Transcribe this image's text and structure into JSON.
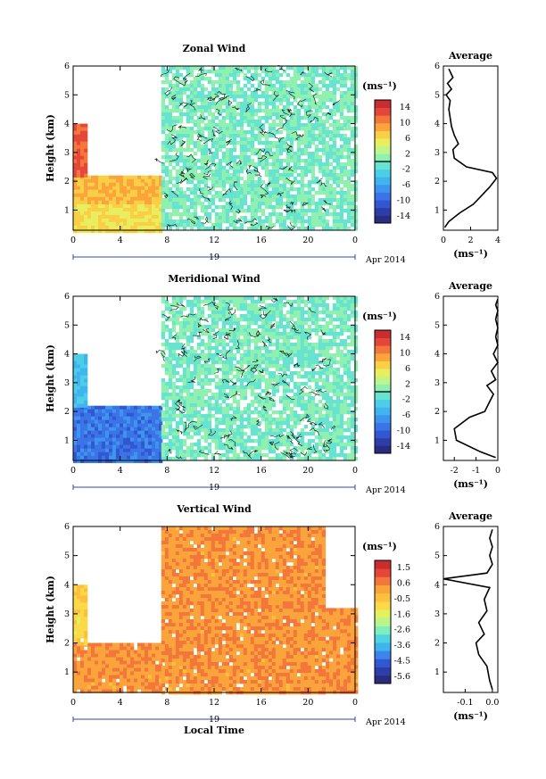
{
  "panels": [
    {
      "title": "Zonal Wind",
      "cb_unit": "(ms⁻¹)",
      "cb_ticks": [
        "14",
        "10",
        "6",
        "2",
        "-2",
        "-6",
        "-10",
        "-14"
      ],
      "cb_kind": "horiz",
      "avg_title": "Average",
      "avg_unit": "(ms⁻¹)",
      "avg_xticks": [
        "0",
        "2",
        "4"
      ]
    },
    {
      "title": "Meridional Wind",
      "cb_unit": "(ms⁻¹)",
      "cb_ticks": [
        "14",
        "10",
        "6",
        "2",
        "-2",
        "-6",
        "-10",
        "-14"
      ],
      "cb_kind": "merid",
      "avg_title": "Average",
      "avg_unit": "(ms⁻¹)",
      "avg_xticks": [
        "-2",
        "-1",
        "0"
      ]
    },
    {
      "title": "Vertical Wind",
      "cb_unit": "(ms⁻¹)",
      "cb_ticks": [
        "1.5",
        "0.6",
        "-0.5",
        "-1.6",
        "-2.6",
        "-3.6",
        "-4.5",
        "-5.6"
      ],
      "cb_kind": "vert",
      "avg_title": "Average",
      "avg_unit": "(ms⁻¹)",
      "avg_xticks": [
        "-0.1",
        "0.0"
      ]
    }
  ],
  "shared": {
    "ylabel": "Height (km)",
    "yticks": [
      "1",
      "2",
      "3",
      "4",
      "5",
      "6"
    ],
    "xticks": [
      "0",
      "4",
      "8",
      "12",
      "16",
      "20",
      "0"
    ],
    "day": "19",
    "month": "Apr 2014",
    "xlabel": "Local Time"
  },
  "chart_data": [
    {
      "type": "heatmap",
      "title": "Zonal Wind",
      "xlabel": "Local Time",
      "ylabel": "Height (km)",
      "xlim": [
        0,
        24
      ],
      "ylim": [
        0.3,
        6
      ],
      "colorbar": {
        "label": "(ms⁻¹)",
        "range": [
          -16,
          16
        ],
        "ticks": [
          14,
          10,
          6,
          2,
          -2,
          -6,
          -10,
          -14
        ]
      },
      "regions": [
        {
          "x": [
            0,
            7.5
          ],
          "y": [
            0.3,
            1.2
          ],
          "value": 6
        },
        {
          "x": [
            0,
            7.5
          ],
          "y": [
            1.2,
            2.2
          ],
          "value": 8
        },
        {
          "x": [
            0,
            1.2
          ],
          "y": [
            2.2,
            4.0
          ],
          "value": 12
        },
        {
          "x": [
            7.5,
            24
          ],
          "y": [
            0.3,
            6
          ],
          "value": 0
        }
      ]
    },
    {
      "type": "line",
      "title": "Average",
      "xlabel": "(ms⁻¹)",
      "ylabel": "Height (km)",
      "xlim": [
        0,
        4
      ],
      "ylim": [
        0.3,
        6
      ],
      "series": [
        {
          "x": [
            0.1,
            0.4,
            1.2,
            2.2,
            2.8,
            3.4,
            3.9,
            3.6,
            1.7,
            0.8,
            0.7,
            1.1,
            0.8,
            0.6,
            0.5,
            0.4,
            0.5,
            0.2,
            0.6,
            0.3,
            0.7,
            0.4
          ],
          "y": [
            0.4,
            0.6,
            0.9,
            1.2,
            1.5,
            1.8,
            2.1,
            2.3,
            2.5,
            2.8,
            3.1,
            3.3,
            3.6,
            3.9,
            4.2,
            4.5,
            4.8,
            5.0,
            5.2,
            5.4,
            5.6,
            5.9
          ]
        }
      ]
    },
    {
      "type": "heatmap",
      "title": "Meridional Wind",
      "xlabel": "Local Time",
      "ylabel": "Height (km)",
      "xlim": [
        0,
        24
      ],
      "ylim": [
        0.3,
        6
      ],
      "colorbar": {
        "label": "(ms⁻¹)",
        "range": [
          -16,
          16
        ],
        "ticks": [
          14,
          10,
          6,
          2,
          -2,
          -6,
          -10,
          -14
        ]
      },
      "regions": [
        {
          "x": [
            0,
            7.5
          ],
          "y": [
            0.3,
            2.2
          ],
          "value": -9
        },
        {
          "x": [
            0,
            1.0
          ],
          "y": [
            2.2,
            4.0
          ],
          "value": -4
        },
        {
          "x": [
            7.5,
            24
          ],
          "y": [
            0.3,
            6
          ],
          "value": 0
        }
      ]
    },
    {
      "type": "line",
      "title": "Average",
      "xlabel": "(ms⁻¹)",
      "ylabel": "Height (km)",
      "xlim": [
        -2.5,
        0
      ],
      "ylim": [
        0.3,
        6
      ],
      "series": [
        {
          "x": [
            -0.1,
            -0.8,
            -1.9,
            -2.0,
            -1.3,
            -0.6,
            -0.4,
            -0.2,
            -0.5,
            -0.1,
            -0.3,
            0,
            -0.2,
            0,
            -0.1,
            0,
            -0.1,
            0,
            -0.1,
            0
          ],
          "y": [
            0.4,
            0.6,
            1.0,
            1.4,
            1.8,
            2.0,
            2.3,
            2.6,
            2.9,
            3.1,
            3.4,
            3.7,
            4.0,
            4.3,
            4.6,
            4.9,
            5.2,
            5.5,
            5.7,
            5.9
          ]
        }
      ]
    },
    {
      "type": "heatmap",
      "title": "Vertical Wind",
      "xlabel": "Local Time",
      "ylabel": "Height (km)",
      "xlim": [
        0,
        24
      ],
      "ylim": [
        0.3,
        6
      ],
      "colorbar": {
        "label": "(ms⁻¹)",
        "range": [
          -6,
          2
        ],
        "ticks": [
          1.5,
          0.6,
          -0.5,
          -1.6,
          -2.6,
          -3.6,
          -4.5,
          -5.6
        ]
      },
      "regions": [
        {
          "x": [
            0,
            7.5
          ],
          "y": [
            0.3,
            2.0
          ],
          "value": 0.3
        },
        {
          "x": [
            0,
            1.0
          ],
          "y": [
            2.0,
            4.0
          ],
          "value": -0.8
        },
        {
          "x": [
            7.5,
            21.5
          ],
          "y": [
            0.3,
            6
          ],
          "value": 0.3
        },
        {
          "x": [
            21.5,
            24
          ],
          "y": [
            0.3,
            3.2
          ],
          "value": 0.3
        }
      ]
    },
    {
      "type": "line",
      "title": "Average",
      "xlabel": "(ms⁻¹)",
      "ylabel": "Height (km)",
      "xlim": [
        -0.18,
        0.02
      ],
      "ylim": [
        0.3,
        6
      ],
      "series": [
        {
          "x": [
            0,
            -0.01,
            -0.02,
            -0.05,
            -0.06,
            -0.03,
            -0.05,
            -0.02,
            -0.03,
            -0.01,
            -0.18,
            -0.02,
            0,
            -0.01,
            0,
            -0.01,
            0
          ],
          "y": [
            0.4,
            0.7,
            1.2,
            1.6,
            2.0,
            2.3,
            2.7,
            3.1,
            3.5,
            3.9,
            4.2,
            4.4,
            4.7,
            5.0,
            5.3,
            5.6,
            5.9
          ]
        }
      ]
    }
  ]
}
